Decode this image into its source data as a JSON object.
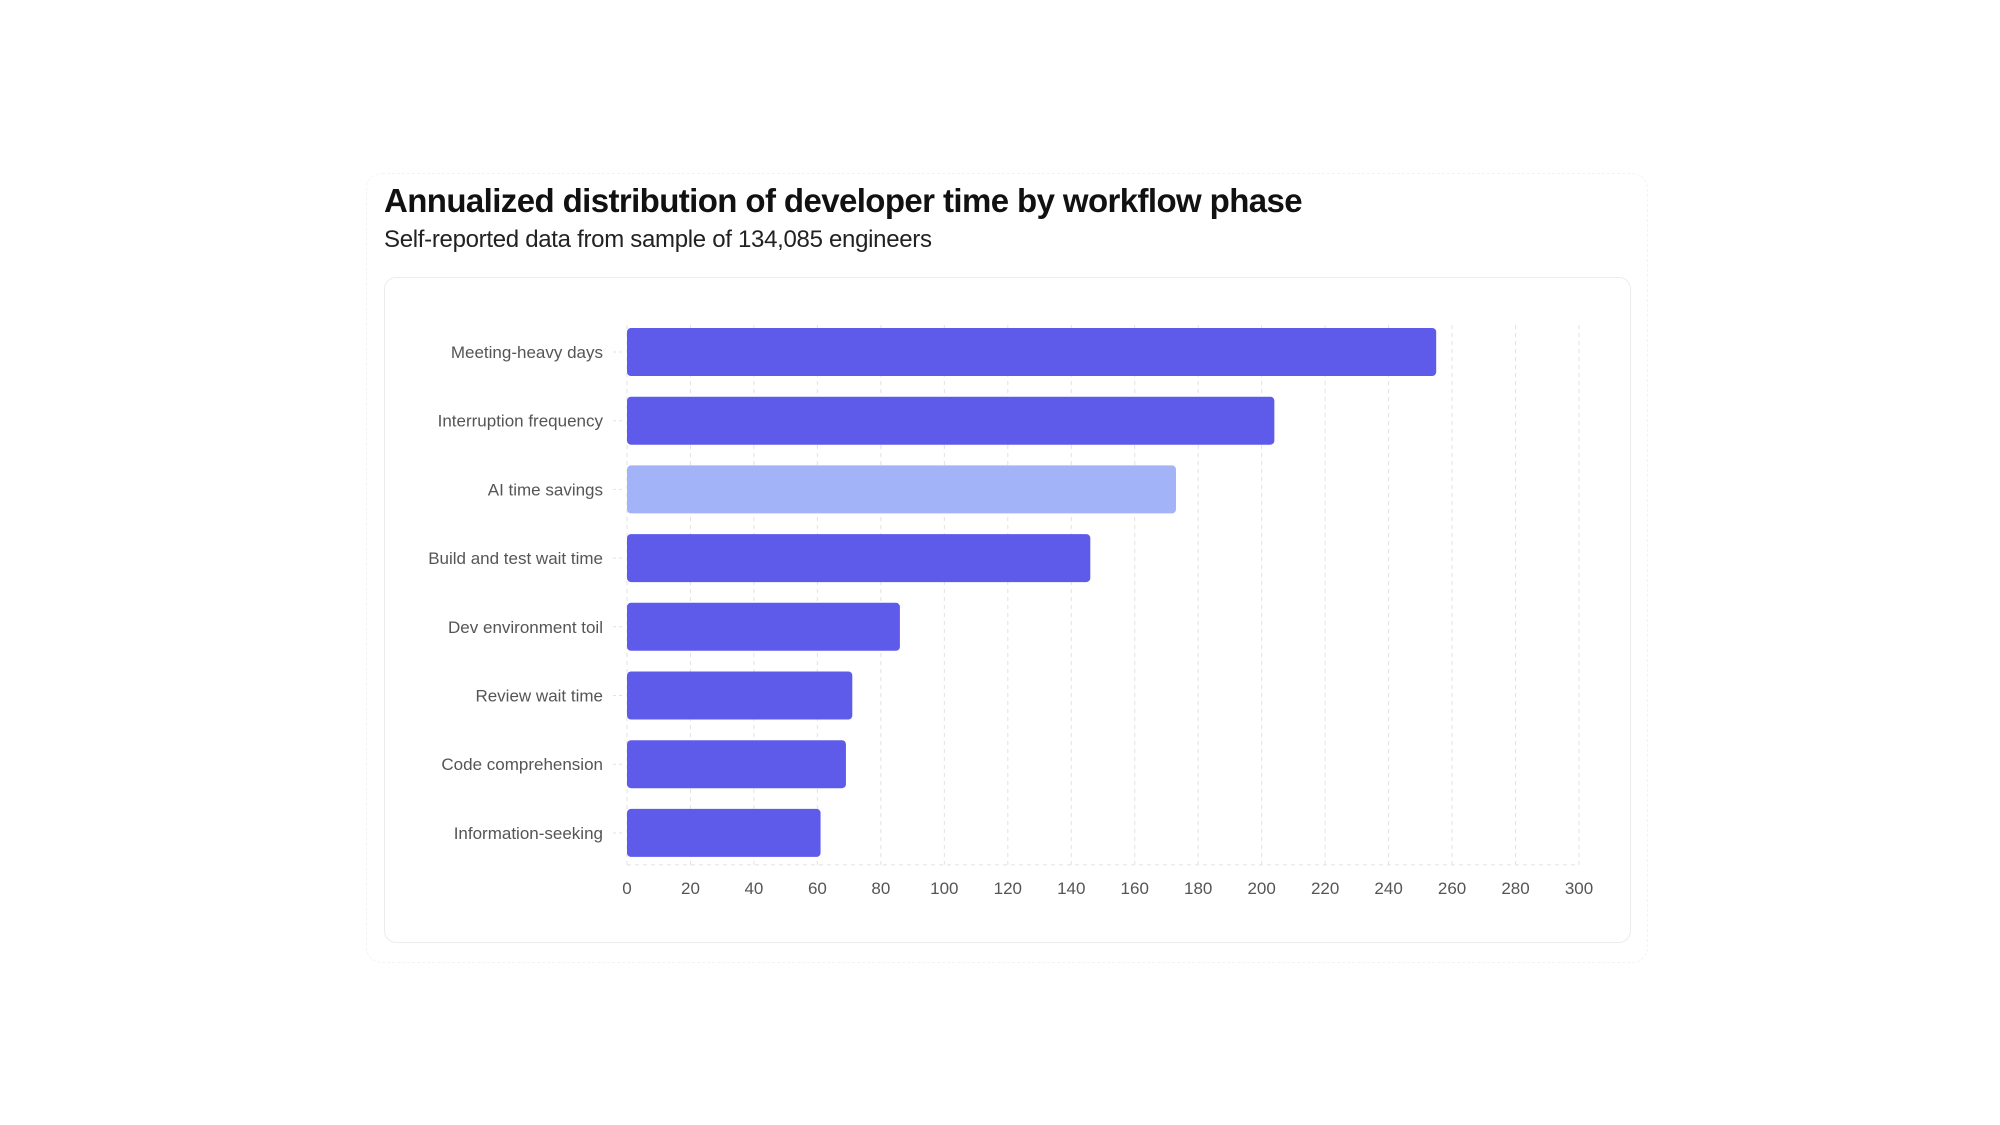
{
  "chart_data": {
    "type": "bar",
    "orientation": "horizontal",
    "title": "Annualized distribution of developer time by workflow phase",
    "subtitle": "Self-reported data from sample of 134,085 engineers",
    "categories": [
      "Meeting-heavy days",
      "Interruption frequency",
      "AI time savings",
      "Build and test wait time",
      "Dev environment toil",
      "Review wait time",
      "Code comprehension",
      "Information-seeking"
    ],
    "values": [
      255,
      204,
      173,
      146,
      86,
      71,
      69,
      61
    ],
    "highlight": [
      false,
      false,
      true,
      false,
      false,
      false,
      false,
      false
    ],
    "xlim": [
      0,
      300
    ],
    "xticks": [
      0,
      20,
      40,
      60,
      80,
      100,
      120,
      140,
      160,
      180,
      200,
      220,
      240,
      260,
      280,
      300
    ],
    "grid": true,
    "xlabel": "",
    "ylabel": "",
    "colors": {
      "primary": "#5f5bea",
      "highlight": "#a3b3f8",
      "grid": "#e2e2e2",
      "label": "#555555"
    }
  }
}
